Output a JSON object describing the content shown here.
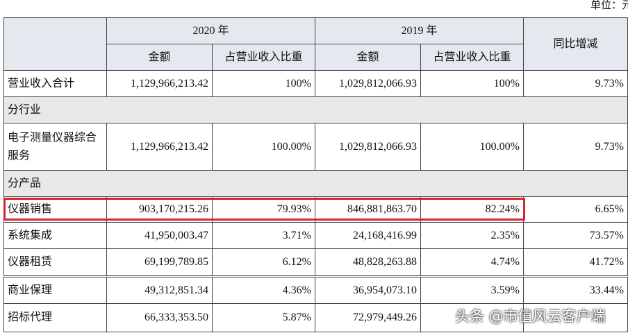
{
  "unit": "单位：元",
  "header": {
    "years": [
      "2020 年",
      "2019 年"
    ],
    "columns": [
      "金额",
      "占营业收入比重",
      "金额",
      "占营业收入比重"
    ],
    "change": "同比增减"
  },
  "rows": [
    {
      "label": "营业收入合计",
      "cells": [
        "1,129,966,213.42",
        "100%",
        "1,029,812,066.93",
        "100%",
        "9.73%"
      ]
    },
    {
      "label": "分行业"
    },
    {
      "label": "电子测量仪器综合服务",
      "cells": [
        "1,129,966,213.42",
        "100.00%",
        "1,029,812,066.93",
        "100.00%",
        "9.73%"
      ]
    },
    {
      "label": "分产品"
    },
    {
      "label": "仪器销售",
      "cells": [
        "903,170,215.26",
        "79.93%",
        "846,881,863.70",
        "82.24%",
        "6.65%"
      ]
    },
    {
      "label": "系统集成",
      "cells": [
        "41,950,003.47",
        "3.71%",
        "24,168,416.99",
        "2.35%",
        "73.57%"
      ]
    },
    {
      "label": "仪器租赁",
      "cells": [
        "69,199,789.85",
        "6.12%",
        "48,828,263.88",
        "4.74%",
        "41.72%"
      ]
    },
    {
      "label": "商业保理",
      "cells": [
        "49,312,851.34",
        "4.36%",
        "36,954,073.10",
        "3.59%",
        "33.44%"
      ]
    },
    {
      "label": "招标代理",
      "cells": [
        "66,333,353.50",
        "5.87%",
        "72,979,449.26",
        "",
        ""
      ]
    }
  ],
  "watermark": "头条 @市值风云客户端"
}
